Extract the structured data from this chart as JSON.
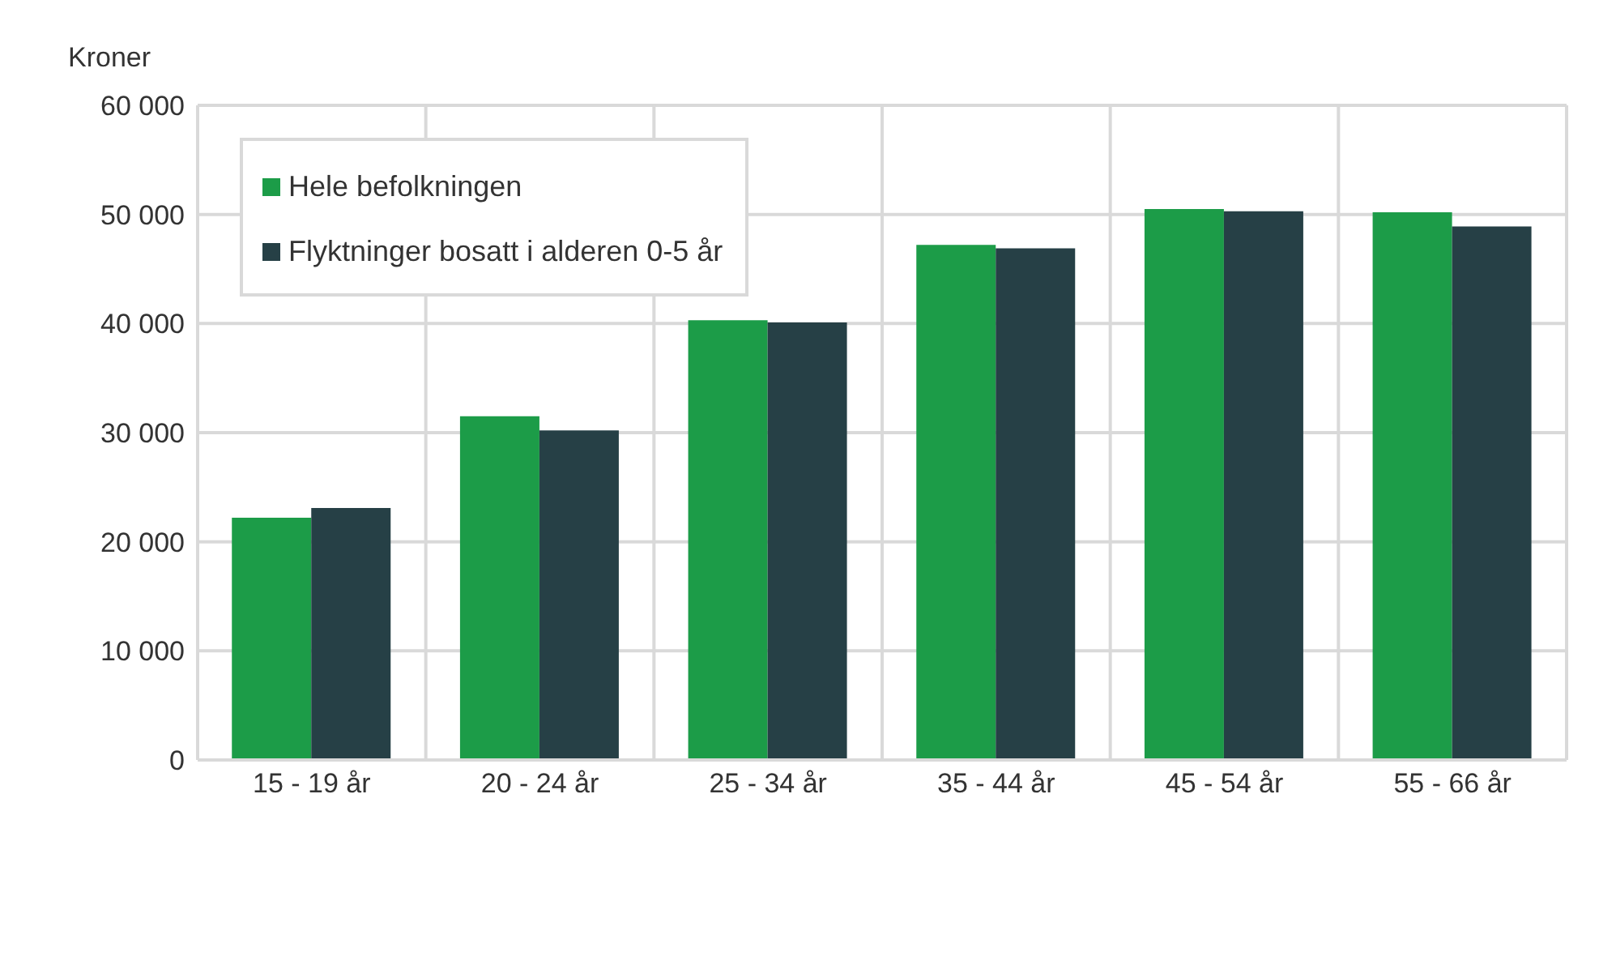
{
  "chart_data": {
    "type": "bar",
    "ylabel": "Kroner",
    "categories": [
      "15 - 19 år",
      "20 - 24 år",
      "25 - 34 år",
      "35 - 44 år",
      "45 - 54 år",
      "55 - 66 år"
    ],
    "series": [
      {
        "name": "Hele befolkningen",
        "color": "#1c9c48",
        "values": [
          22200,
          31500,
          40300,
          47200,
          50500,
          50200
        ]
      },
      {
        "name": "Flyktninger bosatt i alderen 0-5 år",
        "color": "#264046",
        "values": [
          23100,
          30200,
          40100,
          46900,
          50300,
          48900
        ]
      }
    ],
    "ylim": [
      0,
      60000
    ],
    "yticks": [
      {
        "value": 0,
        "label": "0"
      },
      {
        "value": 10000,
        "label": "10 000"
      },
      {
        "value": 20000,
        "label": "20 000"
      },
      {
        "value": 30000,
        "label": "30 000"
      },
      {
        "value": 40000,
        "label": "40 000"
      },
      {
        "value": 50000,
        "label": "50 000"
      },
      {
        "value": 60000,
        "label": "60 000"
      }
    ],
    "grid": true,
    "legend": "top left"
  }
}
